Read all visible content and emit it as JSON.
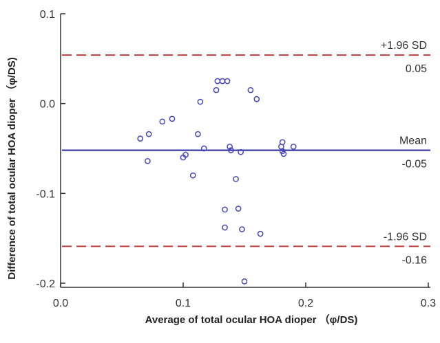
{
  "chart_data": {
    "type": "scatter",
    "xlabel": "Average of total ocular HOA dioper （φ/DS)",
    "ylabel": "Difference of total ocular HOA dioper （φ/DS)",
    "xlim": [
      0.0,
      0.3
    ],
    "ylim": [
      -0.2,
      0.1
    ],
    "x_ticks": [
      {
        "value": 0.0,
        "label": "0.0"
      },
      {
        "value": 0.1,
        "label": "0.1"
      },
      {
        "value": 0.2,
        "label": "0.2"
      },
      {
        "value": 0.3,
        "label": "0.3"
      }
    ],
    "y_ticks": [
      {
        "value": 0.1,
        "label": "0.1"
      },
      {
        "value": 0.0,
        "label": "0.0"
      },
      {
        "value": -0.1,
        "label": "-0.1"
      },
      {
        "value": -0.2,
        "label": "-0.2"
      }
    ],
    "reference_lines": [
      {
        "name": "upper",
        "value": 0.054,
        "label": "+1.96 SD",
        "value_label": "0.05",
        "style": "dashed",
        "color": "#c23b3b"
      },
      {
        "name": "mean",
        "value": -0.052,
        "label": "Mean",
        "value_label": "-0.05",
        "style": "solid",
        "color": "#3a3aa8"
      },
      {
        "name": "lower",
        "value": -0.159,
        "label": "-1.96 SD",
        "value_label": "-0.16",
        "style": "dashed",
        "color": "#c23b3b"
      }
    ],
    "marker_color": "#4747b8",
    "grid": false,
    "points": [
      {
        "x": 0.065,
        "y": -0.039
      },
      {
        "x": 0.072,
        "y": -0.034
      },
      {
        "x": 0.071,
        "y": -0.064
      },
      {
        "x": 0.083,
        "y": -0.02
      },
      {
        "x": 0.091,
        "y": -0.017
      },
      {
        "x": 0.1,
        "y": -0.06
      },
      {
        "x": 0.102,
        "y": -0.057
      },
      {
        "x": 0.108,
        "y": -0.08
      },
      {
        "x": 0.112,
        "y": -0.034
      },
      {
        "x": 0.114,
        "y": 0.002
      },
      {
        "x": 0.117,
        "y": -0.05
      },
      {
        "x": 0.127,
        "y": 0.015
      },
      {
        "x": 0.128,
        "y": 0.025
      },
      {
        "x": 0.132,
        "y": 0.025
      },
      {
        "x": 0.136,
        "y": 0.025
      },
      {
        "x": 0.134,
        "y": -0.118
      },
      {
        "x": 0.134,
        "y": -0.138
      },
      {
        "x": 0.138,
        "y": -0.048
      },
      {
        "x": 0.139,
        "y": -0.052
      },
      {
        "x": 0.143,
        "y": -0.084
      },
      {
        "x": 0.145,
        "y": -0.117
      },
      {
        "x": 0.147,
        "y": -0.054
      },
      {
        "x": 0.148,
        "y": -0.14
      },
      {
        "x": 0.15,
        "y": -0.198
      },
      {
        "x": 0.155,
        "y": 0.015
      },
      {
        "x": 0.16,
        "y": 0.005
      },
      {
        "x": 0.163,
        "y": -0.145
      },
      {
        "x": 0.18,
        "y": -0.048
      },
      {
        "x": 0.181,
        "y": -0.043
      },
      {
        "x": 0.181,
        "y": -0.053
      },
      {
        "x": 0.182,
        "y": -0.056
      },
      {
        "x": 0.19,
        "y": -0.048
      }
    ]
  }
}
